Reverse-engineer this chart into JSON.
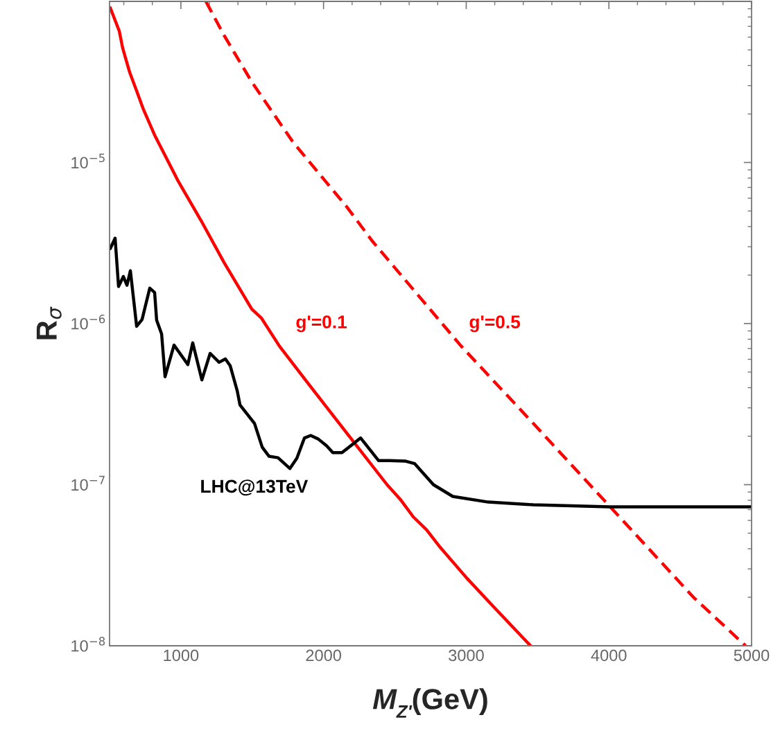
{
  "chart_data": {
    "type": "line",
    "xlabel": "M$_{Z'}$(GeV)",
    "ylabel": "R$_{σ}$",
    "log": "y",
    "xlim": [
      500,
      5000
    ],
    "xticks": [
      1000,
      2000,
      3000,
      4000,
      5000
    ],
    "ylim": [
      1e-08,
      0.0001
    ],
    "yticks": [
      {
        "value": 1e-08,
        "label": "10$^{−8}$"
      },
      {
        "value": 1e-07,
        "label": "10$^{−7}$"
      },
      {
        "value": 1e-06,
        "label": "10$^{−6}$"
      },
      {
        "value": 1e-05,
        "label": "10$^{−5}$"
      }
    ],
    "grid": false,
    "legend": false,
    "marker": "none",
    "series": [
      {
        "name": "g'=0.1",
        "color": "#ff0000",
        "line_style": "solid",
        "x": [
          505,
          568,
          592,
          641,
          690,
          738,
          816,
          981,
          1142,
          1302,
          1497,
          1565,
          1691,
          1890,
          2163,
          2445,
          2537,
          2629,
          2722,
          2819,
          3004,
          3193,
          3451
        ],
        "values": [
          9.12e-05,
          6.55e-05,
          5.13e-05,
          3.63e-05,
          2.78e-05,
          2.13e-05,
          1.48e-05,
          7.66e-06,
          4.35e-06,
          2.4e-06,
          1.23e-06,
          1.08e-06,
          7.24e-07,
          4.27e-07,
          2.09e-07,
          1e-07,
          8.13e-08,
          6.31e-08,
          5.25e-08,
          4.07e-08,
          2.63e-08,
          1.74e-08,
          1e-08
        ]
      },
      {
        "name": "g'=0.5",
        "color": "#ff0000",
        "line_style": "dashed",
        "x": [
          1175,
          1302,
          1497,
          1788,
          2163,
          2343,
          2965,
          3470,
          4005,
          4593,
          4958
        ],
        "values": [
          0.0001,
          6.17e-05,
          3.16e-05,
          1.33e-05,
          5.3e-06,
          3.24e-06,
          7.24e-07,
          2.4e-07,
          7.35e-08,
          2e-08,
          1e-08
        ]
      },
      {
        "name": "LHC@13TeV",
        "color": "#000000",
        "line_style": "solid",
        "x": [
          505,
          539,
          563,
          597,
          622,
          646,
          690,
          728,
          782,
          816,
          830,
          865,
          889,
          952,
          1049,
          1083,
          1147,
          1205,
          1268,
          1312,
          1346,
          1395,
          1414,
          1516,
          1570,
          1618,
          1681,
          1764,
          1813,
          1866,
          1910,
          1963,
          2022,
          2065,
          2129,
          2260,
          2386,
          2464,
          2576,
          2639,
          2770,
          2906,
          3154,
          3470,
          4005,
          5000
        ],
        "values": [
          2.92e-06,
          3.39e-06,
          1.7e-06,
          1.96e-06,
          1.73e-06,
          2.13e-06,
          9.62e-07,
          1.06e-06,
          1.66e-06,
          1.56e-06,
          1.05e-06,
          8.61e-07,
          4.68e-07,
          7.35e-07,
          5.57e-07,
          7.59e-07,
          4.47e-07,
          6.53e-07,
          5.75e-07,
          6.03e-07,
          5.46e-07,
          3.82e-07,
          3.13e-07,
          2.4e-07,
          1.71e-07,
          1.5e-07,
          1.47e-07,
          1.26e-07,
          1.46e-07,
          1.95e-07,
          2.02e-07,
          1.92e-07,
          1.74e-07,
          1.58e-07,
          1.58e-07,
          1.95e-07,
          1.41e-07,
          1.41e-07,
          1.4e-07,
          1.35e-07,
          1e-07,
          8.45e-08,
          7.8e-08,
          7.5e-08,
          7.28e-08,
          7.28e-08
        ]
      }
    ]
  }
}
